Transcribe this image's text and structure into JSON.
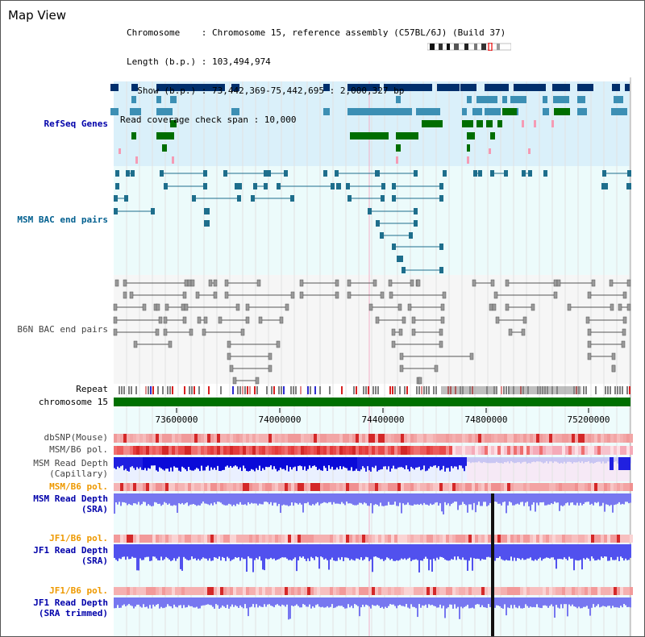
{
  "page": {
    "title": "Map View"
  },
  "header": {
    "chromosome_line": "Chromosome    : Chromosome 15, reference assembly (C57BL/6J) (Build 37)",
    "length_line": "Length (b.p.) : 103,494,974",
    "show_line": "  Show (b.p.) : 73,442,369-75,442,695 : 2,000,327 bp",
    "coverage_line": "Read coverage check span : 10,000"
  },
  "tracks": {
    "refseq": "RefSeq Genes",
    "msm_bac": "MSM BAC end pairs",
    "b6n_bac": "B6N BAC end pairs",
    "repeat": "Repeat",
    "chromosome": "chromosome 15",
    "dbsnp": "dbSNP(Mouse)",
    "msm_b6_pol_1": "MSM/B6 pol.",
    "msm_read_depth_cap_1": "MSM Read Depth",
    "msm_read_depth_cap_2": "(Capillary)",
    "msm_b6_pol_2": "MSM/B6 pol.",
    "msm_read_depth_sra_1": "MSM Read Depth",
    "msm_read_depth_sra_2": "(SRA)",
    "jf1_b6_pol_1": "JF1/B6 pol.",
    "jf1_read_depth_sra_1": "JF1 Read Depth",
    "jf1_read_depth_sra_2": "(SRA)",
    "jf1_b6_pol_2": "JF1/B6 pol.",
    "jf1_read_depth_trim_1": "JF1 Read Depth",
    "jf1_read_depth_trim_2": "(SRA trimmed)"
  },
  "axis": {
    "ticks": [
      "73600000",
      "74000000",
      "74400000",
      "74800000",
      "75200000"
    ]
  },
  "colors": {
    "refseq_bg": "#daf0fa",
    "bac_bg": "#ecfbfb",
    "gene_dark": "#002f6c",
    "gene_mid": "#3c8fb4",
    "gene_green": "#006e00",
    "gene_pink": "#f59bb4",
    "msm_bac_line": "#1e6e8c",
    "b6n_bac_line": "#555555",
    "chromosome_bar": "#007000",
    "depth_blue": "#2222ee",
    "depth_light": "#7777f0",
    "pol_red": "#e04040"
  }
}
